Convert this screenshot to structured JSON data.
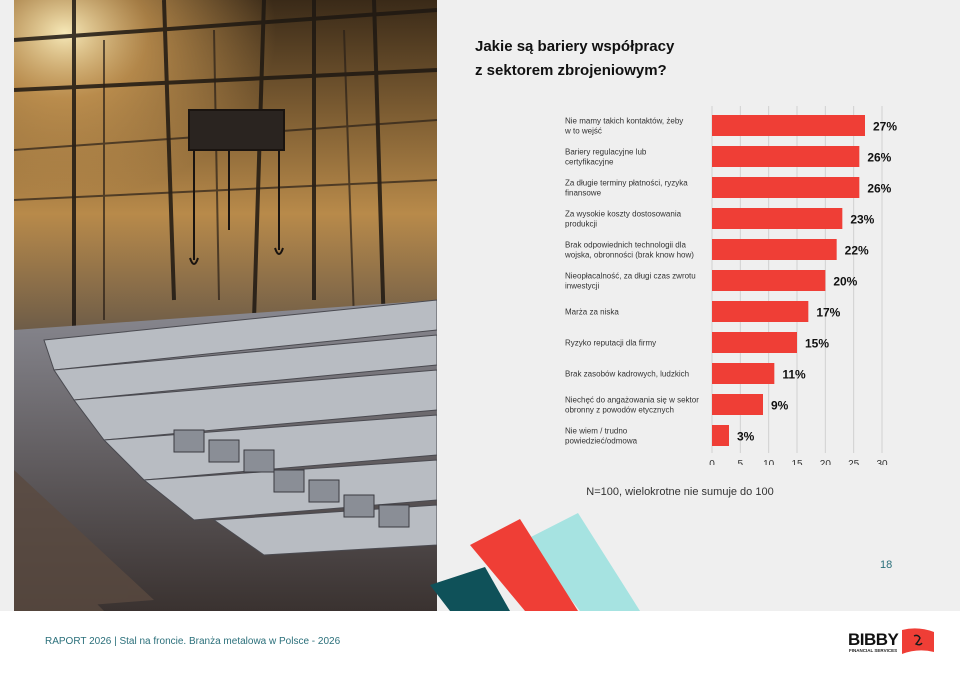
{
  "chart_data": {
    "type": "bar",
    "orientation": "horizontal",
    "title": "Jakie są bariery współpracy z sektorem zbrojeniowym?",
    "title_lines": [
      "Jakie są bariery współpracy",
      "z sektorem zbrojeniowym?"
    ],
    "categories": [
      [
        "Nie mamy takich kontaktów, żeby",
        "w to wejść"
      ],
      [
        "Bariery regulacyjne lub",
        "certyfikacyjne"
      ],
      [
        "Za długie terminy płatności, ryzyka",
        "finansowe"
      ],
      [
        "Za wysokie koszty dostosowania",
        "produkcji"
      ],
      [
        "Brak odpowiednich technologii dla",
        "wojska, obronności (brak know how)"
      ],
      [
        "Nieopłacalność, za długi czas zwrotu",
        "inwestycji"
      ],
      [
        "Marża za niska"
      ],
      [
        "Ryzyko reputacji dla firmy"
      ],
      [
        "Brak zasobów kadrowych, ludzkich"
      ],
      [
        "Niechęć do angażowania się w sektor",
        "obronny z powodów etycznych"
      ],
      [
        "Nie wiem / trudno",
        "powiedzieć/odmowa"
      ]
    ],
    "values": [
      27,
      26,
      26,
      23,
      22,
      20,
      17,
      15,
      11,
      9,
      3
    ],
    "value_labels": [
      "27%",
      "26%",
      "26%",
      "23%",
      "22%",
      "20%",
      "17%",
      "15%",
      "11%",
      "9%",
      "3%"
    ],
    "xlim": [
      0,
      30
    ],
    "xticks": [
      "0",
      "5",
      "10",
      "15",
      "20",
      "25",
      "30"
    ],
    "grid": true,
    "bar_color": "#ef3e36",
    "note": "N=100, wielokrotne nie sumuje do 100"
  },
  "page": {
    "number": "18",
    "footer": "RAPORT 2026 | Stal na froncie. Branża metalowa w Polsce - 2026"
  },
  "logo": {
    "word": "BIBBY",
    "subtitle": "FINANCIAL SERVICES",
    "icon": "flag-icon"
  },
  "colors": {
    "accent_red": "#ef3e36",
    "accent_teal": "#a6e3e1",
    "accent_dark_teal": "#0f5159",
    "text_teal": "#2a6f7a"
  },
  "photo": {
    "icon": "steel-mill-photo"
  }
}
